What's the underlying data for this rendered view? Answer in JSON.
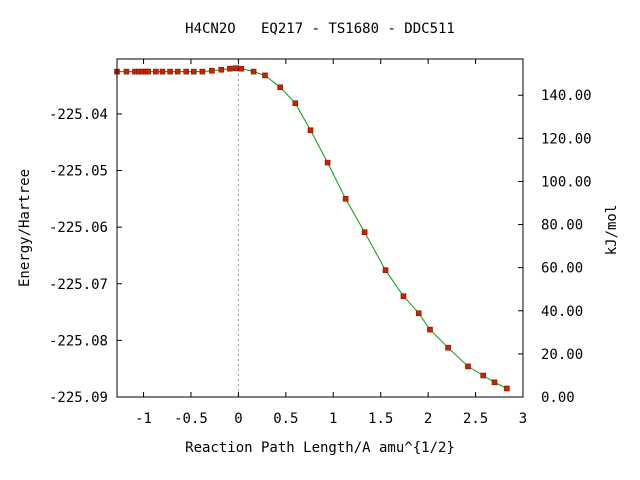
{
  "chart_data": {
    "type": "line",
    "title": "H4CN2O   EQ217 - TS1680 - DDC511",
    "xlabel": "Reaction Path Length/A amu^{1/2}",
    "ylabel": "Energy/Hartree",
    "y2label": "kJ/mol",
    "xlim": [
      -1.28,
      3.0
    ],
    "ylim": [
      -225.09,
      -225.0303
    ],
    "y2lim": [
      0.0,
      156.8
    ],
    "x_ticks": [
      -1,
      -0.5,
      0,
      0.5,
      1,
      1.5,
      2,
      2.5,
      3
    ],
    "x_tick_labels": [
      "-1",
      "-0.5",
      "0",
      "0.5",
      "1",
      "1.5",
      "2",
      "2.5",
      "3"
    ],
    "y_ticks": [
      -225.04,
      -225.05,
      -225.06,
      -225.07,
      -225.08,
      -225.09
    ],
    "y_tick_labels": [
      "-225.04",
      "-225.05",
      "-225.06",
      "-225.07",
      "-225.08",
      "-225.09"
    ],
    "y2_ticks": [
      0,
      20,
      40,
      60,
      80,
      100,
      120,
      140
    ],
    "y2_tick_labels": [
      "0.00",
      "20.00",
      "40.00",
      "60.00",
      "80.00",
      "100.00",
      "120.00",
      "140.00"
    ],
    "ts_x": 0,
    "grid": false,
    "legend": "none",
    "colors": {
      "line": "#00a000",
      "marker": "#cc2200",
      "marker_edge": "#7a1500",
      "ts_line": "#999999",
      "axes": "#000000"
    },
    "series": [
      {
        "x": [
          -1.28,
          -1.18,
          -1.09,
          -1.05,
          -1.01,
          -0.98,
          -0.95,
          -0.87,
          -0.8,
          -0.72,
          -0.64,
          -0.55,
          -0.47,
          -0.38,
          -0.28,
          -0.18,
          -0.09,
          -0.03,
          0.03,
          0.16,
          0.28,
          0.44,
          0.6,
          0.76,
          0.94,
          1.13,
          1.33,
          1.55,
          1.74,
          1.9,
          2.02,
          2.21,
          2.42,
          2.58,
          2.7,
          2.83
        ],
        "y": [
          -225.03253,
          -225.03253,
          -225.03253,
          -225.03253,
          -225.03253,
          -225.03253,
          -225.03253,
          -225.03253,
          -225.03253,
          -225.03253,
          -225.03253,
          -225.03253,
          -225.03253,
          -225.03253,
          -225.03236,
          -225.03219,
          -225.03202,
          -225.03193,
          -225.03202,
          -225.03253,
          -225.0332,
          -225.0353,
          -225.0381,
          -225.0429,
          -225.0486,
          -225.055,
          -225.0609,
          -225.0676,
          -225.0722,
          -225.0752,
          -225.0781,
          -225.0813,
          -225.0846,
          -225.0862,
          -225.0874,
          -225.0885
        ]
      }
    ]
  }
}
